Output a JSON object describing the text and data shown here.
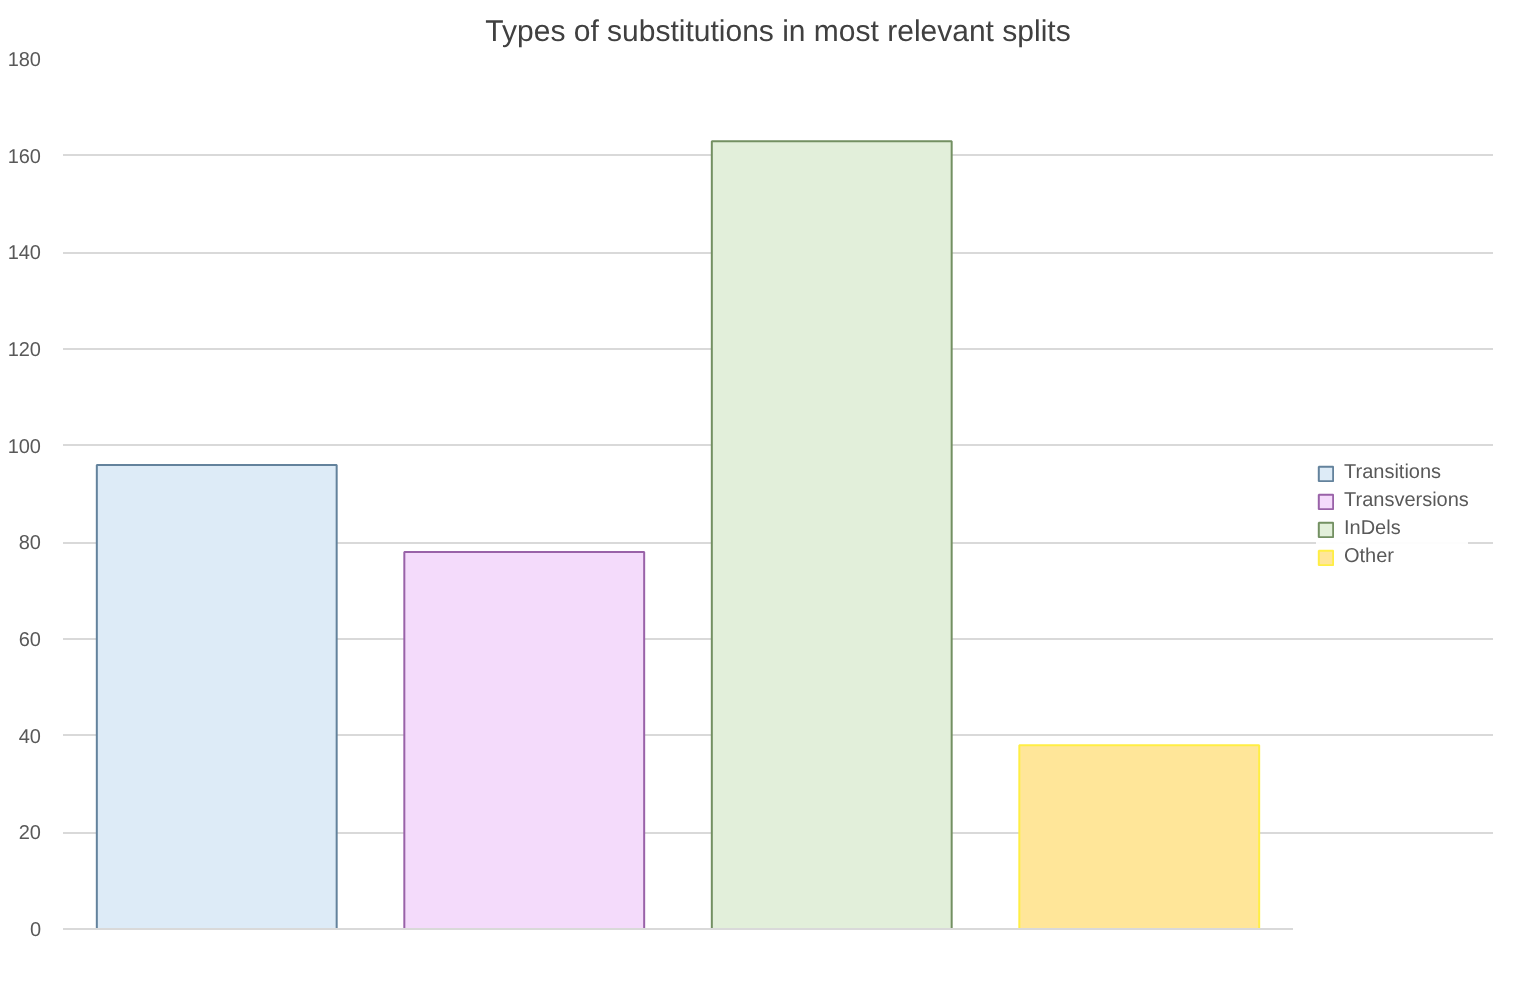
{
  "chart_data": {
    "type": "bar",
    "title": "Types of substitutions in most relevant splits",
    "categories": [
      null,
      null,
      null,
      null
    ],
    "series": [
      {
        "name": "Transitions",
        "color": "#ddebf7",
        "values": [
          96,
          null,
          null,
          null
        ]
      },
      {
        "name": "Transversions",
        "color": "#f4dbfb",
        "values": [
          null,
          78,
          null,
          null
        ]
      },
      {
        "name": "InDels",
        "color": "#e2efda",
        "values": [
          null,
          null,
          163,
          null
        ]
      },
      {
        "name": "Other",
        "color": "#ffe699",
        "values": [
          null,
          null,
          null,
          38
        ]
      }
    ],
    "ylim": [
      0,
      180
    ],
    "yticks": [
      0,
      20,
      40,
      60,
      80,
      100,
      120,
      140,
      160,
      180
    ],
    "grid": "y",
    "legend": "right"
  }
}
